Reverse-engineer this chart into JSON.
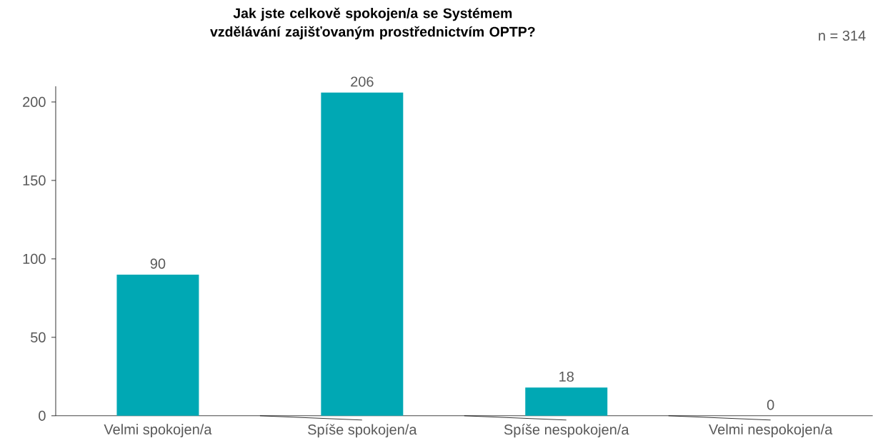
{
  "chart_data": {
    "type": "bar",
    "title": "Jak jste celkově spokojen/a se Systémem vzdělávání zajišťovaným prostřednictvím OPTP?",
    "annotations": [
      "n = 314"
    ],
    "categories": [
      "Velmi spokojen/a",
      "Spíše spokojen/a",
      "Spíše nespokojen/a",
      "Velmi nespokojen/a"
    ],
    "values": [
      90,
      206,
      18,
      0
    ],
    "color": "#00a8b4",
    "ylim": [
      0,
      210
    ],
    "yticks": [
      0,
      50,
      100,
      150,
      200
    ],
    "data_labels": true,
    "grid": false
  }
}
